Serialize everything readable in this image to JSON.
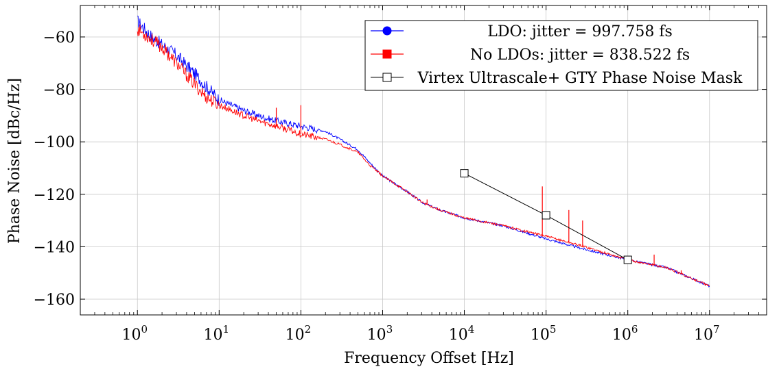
{
  "chart_data": {
    "type": "line",
    "title": "",
    "xlabel": "Frequency Offset [Hz]",
    "ylabel": "Phase Noise [dBc/Hz]",
    "x_scale": "log10",
    "xlim": [
      0.2,
      50000000
    ],
    "ylim": [
      -166,
      -48
    ],
    "x_ticks": [
      {
        "exp": 0,
        "base": "10",
        "sup": "0"
      },
      {
        "exp": 1,
        "base": "10",
        "sup": "1"
      },
      {
        "exp": 2,
        "base": "10",
        "sup": "2"
      },
      {
        "exp": 3,
        "base": "10",
        "sup": "3"
      },
      {
        "exp": 4,
        "base": "10",
        "sup": "4"
      },
      {
        "exp": 5,
        "base": "10",
        "sup": "5"
      },
      {
        "exp": 6,
        "base": "10",
        "sup": "6"
      },
      {
        "exp": 7,
        "base": "10",
        "sup": "7"
      }
    ],
    "y_ticks": [
      {
        "value": -60,
        "label": "−60"
      },
      {
        "value": -80,
        "label": "−80"
      },
      {
        "value": -100,
        "label": "−100"
      },
      {
        "value": -120,
        "label": "−120"
      },
      {
        "value": -140,
        "label": "−140"
      },
      {
        "value": -160,
        "label": "−160"
      }
    ],
    "grid": true,
    "legend_position": "top-right",
    "series": [
      {
        "name": "LDO: jitter = 997.758 fs",
        "color": "#0000ff",
        "marker": "circle",
        "x": [
          1,
          1.5,
          2,
          3,
          5,
          7,
          10,
          20,
          30,
          50,
          100,
          200,
          300,
          500,
          700,
          1000,
          2000,
          3000,
          5000,
          10000,
          30000,
          100000,
          300000,
          1000000,
          3000000,
          10000000
        ],
        "y": [
          -54,
          -60,
          -63,
          -67,
          -74,
          -79,
          -84,
          -88,
          -90,
          -92,
          -94,
          -96,
          -99,
          -103,
          -108,
          -113,
          -119,
          -123,
          -126,
          -129,
          -132,
          -137,
          -141,
          -145,
          -148,
          -155
        ]
      },
      {
        "name": "No LDOs: jitter = 838.522 fs",
        "color": "#ff0000",
        "marker": "square",
        "x": [
          1,
          1.5,
          2,
          3,
          5,
          7,
          10,
          20,
          30,
          50,
          100,
          200,
          300,
          500,
          700,
          1000,
          2000,
          3000,
          5000,
          10000,
          30000,
          100000,
          300000,
          1000000,
          3000000,
          10000000
        ],
        "y": [
          -57,
          -61,
          -64,
          -70,
          -78,
          -83,
          -86,
          -90,
          -92,
          -94,
          -97,
          -99,
          -101,
          -104,
          -109,
          -113,
          -119,
          -123,
          -126,
          -129,
          -132,
          -136,
          -140,
          -145,
          -148,
          -155
        ],
        "spurs": [
          {
            "x": 50,
            "y": -87
          },
          {
            "x": 100,
            "y": -86
          },
          {
            "x": 3500,
            "y": -122
          },
          {
            "x": 90000,
            "y": -117
          },
          {
            "x": 190000,
            "y": -126
          },
          {
            "x": 280000,
            "y": -130
          },
          {
            "x": 2100000,
            "y": -143
          },
          {
            "x": 4500000,
            "y": -149
          }
        ]
      },
      {
        "name": "Virtex Ultrascale+ GTY Phase Noise Mask",
        "color": "#000000",
        "marker": "open-square",
        "x": [
          10000,
          100000,
          1000000
        ],
        "y": [
          -112,
          -128,
          -145
        ]
      }
    ]
  }
}
